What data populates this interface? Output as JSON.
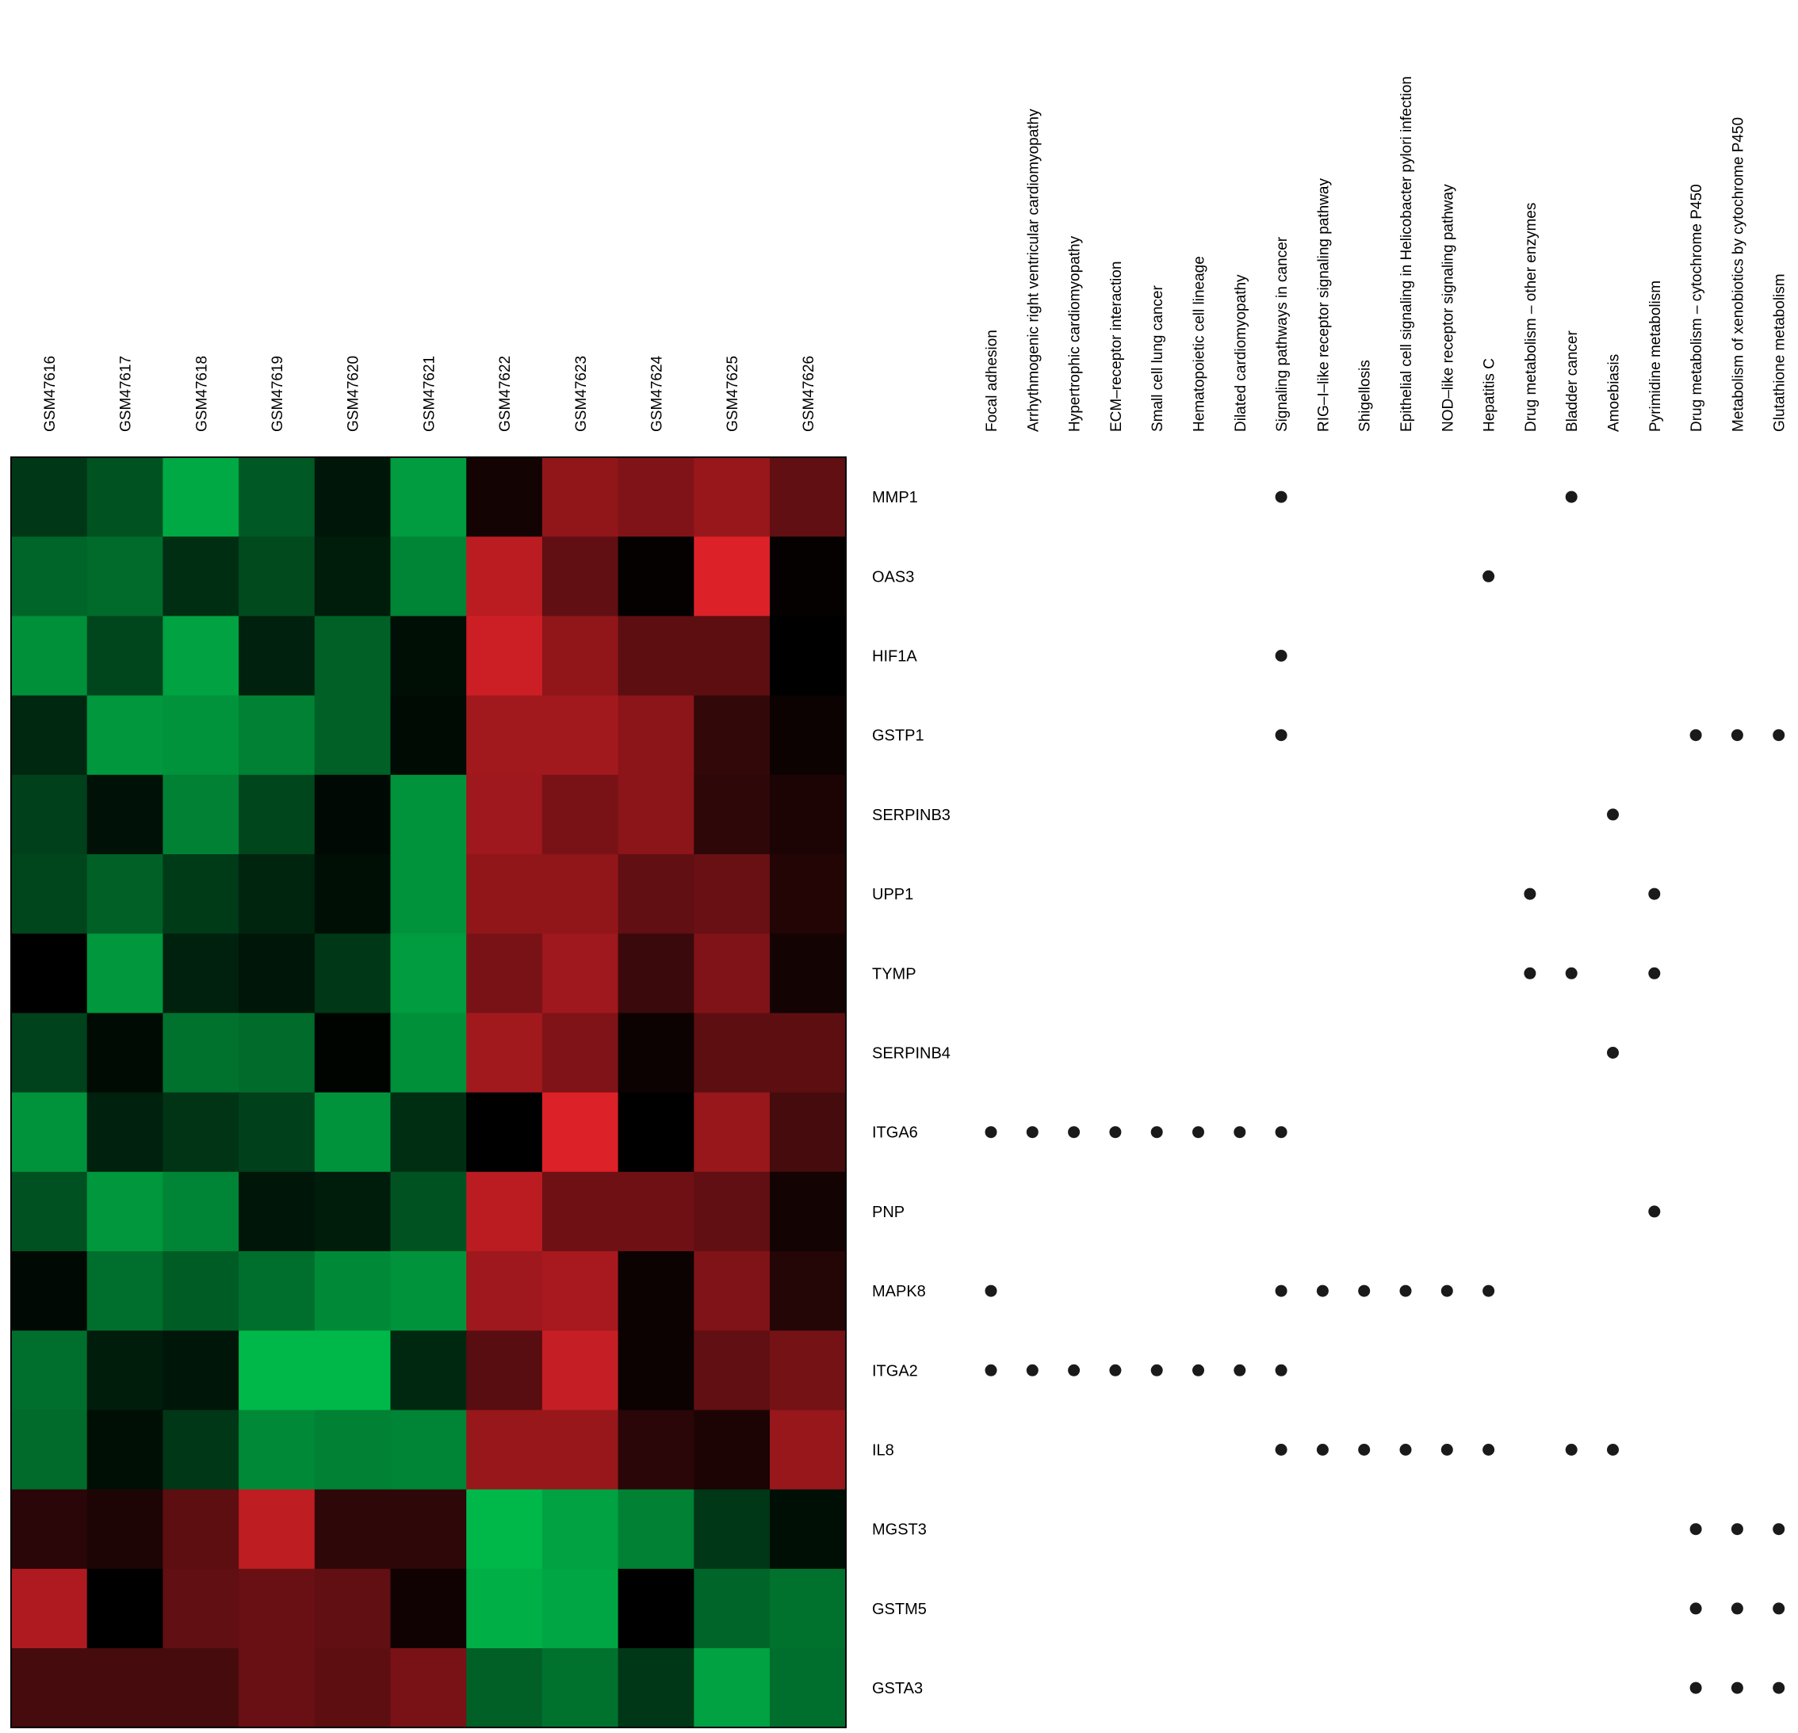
{
  "chart_data": {
    "type": "heatmap",
    "samples": [
      "GSM47616",
      "GSM47617",
      "GSM47618",
      "GSM47619",
      "GSM47620",
      "GSM47621",
      "GSM47622",
      "GSM47623",
      "GSM47624",
      "GSM47625",
      "GSM47626"
    ],
    "genes": [
      "MMP1",
      "OAS3",
      "HIF1A",
      "GSTP1",
      "SERPINB3",
      "UPP1",
      "TYMP",
      "SERPINB4",
      "ITGA6",
      "PNP",
      "MAPK8",
      "ITGA2",
      "IL8",
      "MGST3",
      "GSTM5",
      "GSTA3"
    ],
    "color_scale": {
      "green": "#00b84a",
      "black": "#000000",
      "red": "#e8232a"
    },
    "expression": [
      [
        -0.3,
        -0.45,
        -0.92,
        -0.48,
        -0.12,
        -0.85,
        0.08,
        0.62,
        0.55,
        0.65,
        0.42
      ],
      [
        -0.55,
        -0.58,
        -0.25,
        -0.4,
        -0.15,
        -0.72,
        0.8,
        0.42,
        0.02,
        0.95,
        0.02
      ],
      [
        -0.78,
        -0.38,
        -0.88,
        -0.18,
        -0.52,
        -0.08,
        0.88,
        0.62,
        0.4,
        0.4,
        0.0
      ],
      [
        -0.22,
        -0.82,
        -0.8,
        -0.7,
        -0.52,
        -0.06,
        0.7,
        0.7,
        0.6,
        0.22,
        0.05
      ],
      [
        -0.35,
        -0.1,
        -0.7,
        -0.38,
        -0.05,
        -0.8,
        0.68,
        0.52,
        0.6,
        0.2,
        0.12
      ],
      [
        -0.38,
        -0.52,
        -0.32,
        -0.2,
        -0.08,
        -0.8,
        0.62,
        0.62,
        0.42,
        0.45,
        0.15
      ],
      [
        0.0,
        -0.82,
        -0.18,
        -0.12,
        -0.3,
        -0.85,
        0.52,
        0.68,
        0.25,
        0.55,
        0.08
      ],
      [
        -0.36,
        -0.06,
        -0.62,
        -0.58,
        -0.02,
        -0.78,
        0.7,
        0.55,
        0.05,
        0.4,
        0.4
      ],
      [
        -0.8,
        -0.18,
        -0.28,
        -0.35,
        -0.8,
        -0.25,
        0.0,
        0.95,
        0.0,
        0.65,
        0.3
      ],
      [
        -0.44,
        -0.82,
        -0.72,
        -0.12,
        -0.15,
        -0.45,
        0.8,
        0.48,
        0.48,
        0.42,
        0.08
      ],
      [
        -0.05,
        -0.6,
        -0.5,
        -0.6,
        -0.75,
        -0.8,
        0.68,
        0.72,
        0.05,
        0.55,
        0.16
      ],
      [
        -0.6,
        -0.15,
        -0.12,
        -1.0,
        -1.0,
        -0.22,
        0.38,
        0.85,
        0.05,
        0.42,
        0.5
      ],
      [
        -0.58,
        -0.08,
        -0.3,
        -0.75,
        -0.7,
        -0.72,
        0.65,
        0.65,
        0.18,
        0.12,
        0.65
      ],
      [
        0.18,
        0.13,
        0.4,
        0.82,
        0.2,
        0.2,
        -1.0,
        -0.88,
        -0.7,
        -0.3,
        -0.08
      ],
      [
        0.75,
        0.0,
        0.42,
        0.45,
        0.42,
        0.07,
        -0.95,
        -0.9,
        0.0,
        -0.55,
        -0.62
      ],
      [
        0.3,
        0.3,
        0.3,
        0.45,
        0.4,
        0.52,
        -0.52,
        -0.62,
        -0.3,
        -0.88,
        -0.6
      ]
    ],
    "pathways": [
      "Focal adhesion",
      "Arrhythmogenic right ventricular cardiomyopathy",
      "Hypertrophic cardiomyopathy",
      "ECM–receptor interaction",
      "Small cell lung cancer",
      "Hematopoietic cell lineage",
      "Dilated cardiomyopathy",
      "Signaling pathways in cancer",
      "RIG–I–like receptor signaling pathway",
      "Shigellosis",
      "Epithelial cell signaling in Helicobacter pylori infection",
      "NOD–like receptor signaling pathway",
      "Hepatitis C",
      "Drug metabolism – other enzymes",
      "Bladder cancer",
      "Amoebiasis",
      "Pyrimidine metabolism",
      "Drug metabolism – cytochrome P450",
      "Metabolism of xenobiotics by cytochrome P450",
      "Glutathione metabolism"
    ],
    "membership": [
      {
        "gene": "MMP1",
        "pathways": [
          "Signaling pathways in cancer",
          "Bladder cancer"
        ]
      },
      {
        "gene": "OAS3",
        "pathways": [
          "Hepatitis C"
        ]
      },
      {
        "gene": "HIF1A",
        "pathways": [
          "Signaling pathways in cancer"
        ]
      },
      {
        "gene": "GSTP1",
        "pathways": [
          "Signaling pathways in cancer",
          "Drug metabolism – cytochrome P450",
          "Metabolism of xenobiotics by cytochrome P450",
          "Glutathione metabolism"
        ]
      },
      {
        "gene": "SERPINB3",
        "pathways": [
          "Amoebiasis"
        ]
      },
      {
        "gene": "UPP1",
        "pathways": [
          "Drug metabolism – other enzymes",
          "Pyrimidine metabolism"
        ]
      },
      {
        "gene": "TYMP",
        "pathways": [
          "Drug metabolism – other enzymes",
          "Bladder cancer",
          "Pyrimidine metabolism"
        ]
      },
      {
        "gene": "SERPINB4",
        "pathways": [
          "Amoebiasis"
        ]
      },
      {
        "gene": "ITGA6",
        "pathways": [
          "Focal adhesion",
          "Arrhythmogenic right ventricular cardiomyopathy",
          "Hypertrophic cardiomyopathy",
          "ECM–receptor interaction",
          "Small cell lung cancer",
          "Hematopoietic cell lineage",
          "Dilated cardiomyopathy",
          "Signaling pathways in cancer"
        ]
      },
      {
        "gene": "PNP",
        "pathways": [
          "Pyrimidine metabolism"
        ]
      },
      {
        "gene": "MAPK8",
        "pathways": [
          "Focal adhesion",
          "Signaling pathways in cancer",
          "RIG–I–like receptor signaling pathway",
          "Shigellosis",
          "Epithelial cell signaling in Helicobacter pylori infection",
          "NOD–like receptor signaling pathway",
          "Hepatitis C"
        ]
      },
      {
        "gene": "ITGA2",
        "pathways": [
          "Focal adhesion",
          "Arrhythmogenic right ventricular cardiomyopathy",
          "Hypertrophic cardiomyopathy",
          "ECM–receptor interaction",
          "Small cell lung cancer",
          "Hematopoietic cell lineage",
          "Dilated cardiomyopathy",
          "Signaling pathways in cancer"
        ]
      },
      {
        "gene": "IL8",
        "pathways": [
          "Signaling pathways in cancer",
          "RIG–I–like receptor signaling pathway",
          "Shigellosis",
          "Epithelial cell signaling in Helicobacter pylori infection",
          "NOD–like receptor signaling pathway",
          "Hepatitis C",
          "Bladder cancer",
          "Amoebiasis"
        ]
      },
      {
        "gene": "MGST3",
        "pathways": [
          "Drug metabolism – cytochrome P450",
          "Metabolism of xenobiotics by cytochrome P450",
          "Glutathione metabolism"
        ]
      },
      {
        "gene": "GSTM5",
        "pathways": [
          "Drug metabolism – cytochrome P450",
          "Metabolism of xenobiotics by cytochrome P450",
          "Glutathione metabolism"
        ]
      },
      {
        "gene": "GSTA3",
        "pathways": [
          "Drug metabolism – cytochrome P450",
          "Metabolism of xenobiotics by cytochrome P450",
          "Glutathione metabolism"
        ]
      }
    ]
  }
}
